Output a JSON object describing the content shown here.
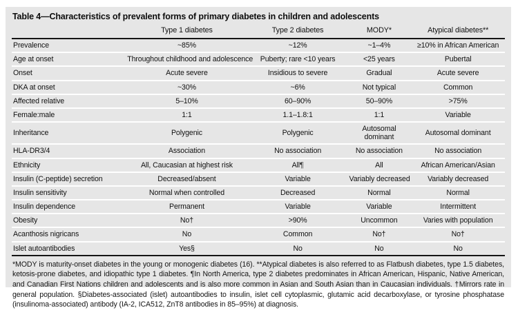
{
  "table": {
    "title": "Table 4—Characteristics of prevalent forms of primary diabetes in children and adolescents",
    "columns": [
      "",
      "Type 1 diabetes",
      "Type 2 diabetes",
      "MODY*",
      "Atypical diabetes**"
    ],
    "rows": [
      {
        "label": "Prevalence",
        "values": [
          "~85%",
          "~12%",
          "~1–4%",
          "≥10% in African American"
        ]
      },
      {
        "label": "Age at onset",
        "values": [
          "Throughout childhood and adolescence",
          "Puberty; rare <10 years",
          "<25 years",
          "Pubertal"
        ]
      },
      {
        "label": "Onset",
        "values": [
          "Acute severe",
          "Insidious to severe",
          "Gradual",
          "Acute severe"
        ]
      },
      {
        "label": "DKA at onset",
        "values": [
          "~30%",
          "~6%",
          "Not typical",
          "Common"
        ]
      },
      {
        "label": "Affected relative",
        "values": [
          "5–10%",
          "60–90%",
          "50–90%",
          ">75%"
        ]
      },
      {
        "label": "Female:male",
        "values": [
          "1:1",
          "1.1–1.8:1",
          "1:1",
          "Variable"
        ]
      },
      {
        "label": "Inheritance",
        "values": [
          "Polygenic",
          "Polygenic",
          "Autosomal dominant",
          "Autosomal dominant"
        ]
      },
      {
        "label": "HLA-DR3/4",
        "values": [
          "Association",
          "No association",
          "No association",
          "No association"
        ]
      },
      {
        "label": "Ethnicity",
        "values": [
          "All, Caucasian at highest risk",
          "All¶",
          "All",
          "African American/Asian"
        ]
      },
      {
        "label": "Insulin (C-peptide) secretion",
        "values": [
          "Decreased/absent",
          "Variable",
          "Variably decreased",
          "Variably decreased"
        ]
      },
      {
        "label": "Insulin sensitivity",
        "values": [
          "Normal when controlled",
          "Decreased",
          "Normal",
          "Normal"
        ]
      },
      {
        "label": "Insulin dependence",
        "values": [
          "Permanent",
          "Variable",
          "Variable",
          "Intermittent"
        ]
      },
      {
        "label": "Obesity",
        "values": [
          "No†",
          ">90%",
          "Uncommon",
          "Varies with population"
        ]
      },
      {
        "label": "Acanthosis nigricans",
        "values": [
          "No",
          "Common",
          "No†",
          "No†"
        ]
      },
      {
        "label": "Islet autoantibodies",
        "values": [
          "Yes§",
          "No",
          "No",
          "No"
        ]
      }
    ],
    "footnote": "*MODY is maturity-onset diabetes in the young or monogenic diabetes (16). **Atypical diabetes is also referred to as Flatbush diabetes, type 1.5 diabetes, ketosis-prone diabetes, and idiopathic type 1 diabetes. ¶In North America, type 2 diabetes predominates in African American, Hispanic, Native American, and Canadian First Nations children and adolescents and is also more common in Asian and South Asian than in Caucasian individuals. †Mirrors rate in general population. §Diabetes-associated (islet) autoantibodies to insulin, islet cell cytoplasmic, glutamic acid decarboxylase, or tyrosine phosphatase (insulinoma-associated) antibody (IA-2, ICA512, ZnT8 antibodies in 85–95%) at diagnosis."
  },
  "colors": {
    "panel_background": "#e6e6e6",
    "row_separator": "#ffffff",
    "rule": "#141414",
    "text": "#111111"
  }
}
